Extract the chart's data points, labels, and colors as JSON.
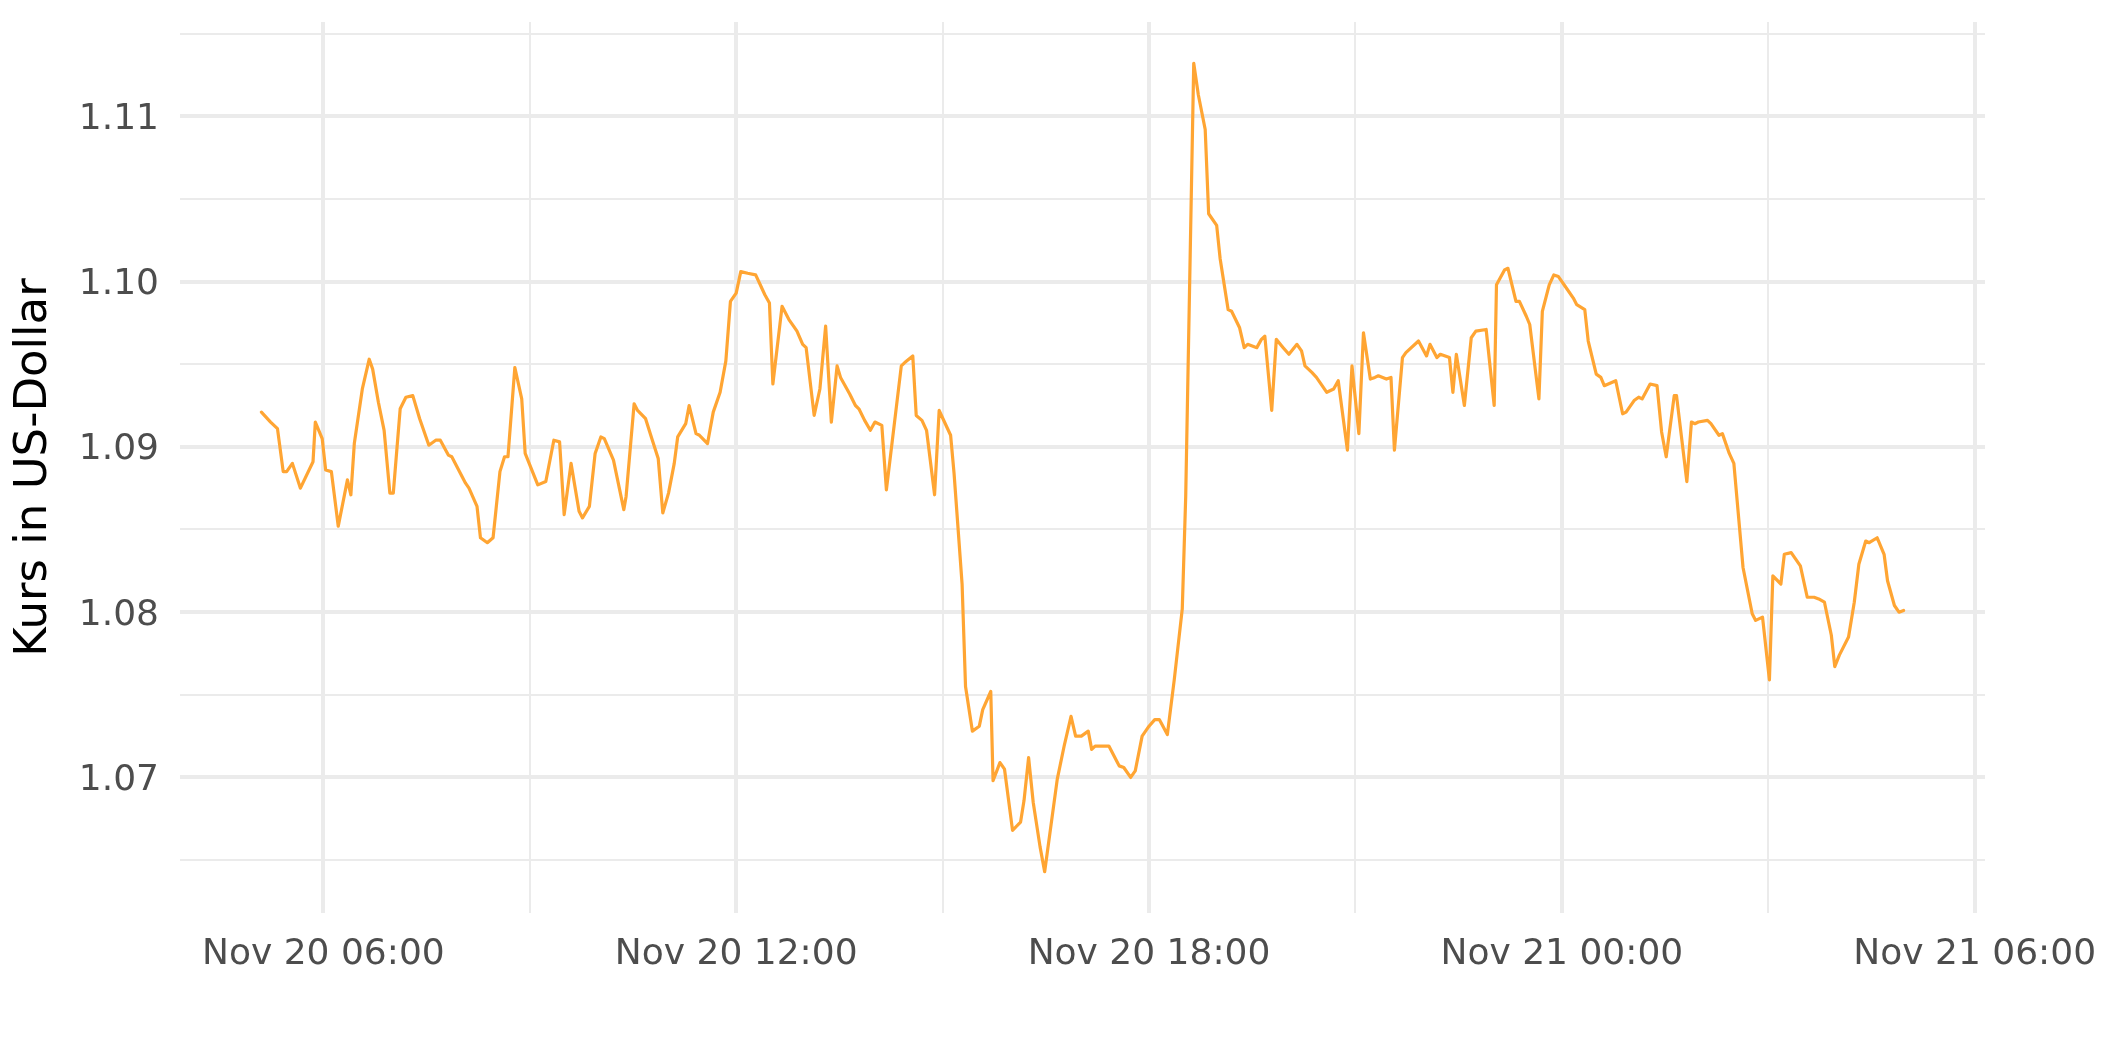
{
  "chart_data": {
    "type": "line",
    "ylabel": "Kurs in US-Dollar",
    "x": [
      "--11-20T05:06",
      "--11-20T05:14",
      "--11-20T05:20",
      "--11-20T05:25",
      "--11-20T05:28",
      "--11-20T05:33",
      "--11-20T05:40",
      "--11-20T05:51",
      "--11-20T05:53",
      "--11-20T05:59",
      "--11-20T06:02",
      "--11-20T06:07",
      "--11-20T06:13",
      "--11-20T06:21",
      "--11-20T06:24",
      "--11-20T06:27",
      "--11-20T06:34",
      "--11-20T06:40",
      "--11-20T06:43",
      "--11-20T06:48",
      "--11-20T06:53",
      "--11-20T06:58",
      "--11-20T07:01",
      "--11-20T07:07",
      "--11-20T07:12",
      "--11-20T07:18",
      "--11-20T07:24",
      "--11-20T07:32",
      "--11-20T07:38",
      "--11-20T07:42",
      "--11-20T07:49",
      "--11-20T07:52",
      "--11-20T08:04",
      "--11-20T08:07",
      "--11-20T08:14",
      "--11-20T08:17",
      "--11-20T08:23",
      "--11-20T08:28",
      "--11-20T08:34",
      "--11-20T08:38",
      "--11-20T08:41",
      "--11-20T08:47",
      "--11-20T08:53",
      "--11-20T08:56",
      "--11-20T09:07",
      "--11-20T09:14",
      "--11-20T09:21",
      "--11-20T09:26",
      "--11-20T09:30",
      "--11-20T09:36",
      "--11-20T09:43",
      "--11-20T09:46",
      "--11-20T09:52",
      "--11-20T09:57",
      "--11-20T10:02",
      "--11-20T10:05",
      "--11-20T10:13",
      "--11-20T10:16",
      "--11-20T10:22",
      "--11-20T10:24",
      "--11-20T10:31",
      "--11-20T10:34",
      "--11-20T10:41",
      "--11-20T10:46",
      "--11-20T10:52",
      "--11-20T10:56",
      "--11-20T11:01",
      "--11-20T11:06",
      "--11-20T11:09",
      "--11-20T11:16",
      "--11-20T11:19",
      "--11-20T11:25",
      "--11-20T11:28",
      "--11-20T11:35",
      "--11-20T11:40",
      "--11-20T11:46",
      "--11-20T11:51",
      "--11-20T11:55",
      "--11-20T12:00",
      "--11-20T12:04",
      "--11-20T12:10",
      "--11-20T12:17",
      "--11-20T12:25",
      "--11-20T12:29",
      "--11-20T12:32",
      "--11-20T12:40",
      "--11-20T12:46",
      "--11-20T12:50",
      "--11-20T12:53",
      "--11-20T12:58",
      "--11-20T13:01",
      "--11-20T13:08",
      "--11-20T13:13",
      "--11-20T13:18",
      "--11-20T13:23",
      "--11-20T13:28",
      "--11-20T13:31",
      "--11-20T13:39",
      "--11-20T13:44",
      "--11-20T13:47",
      "--11-20T13:52",
      "--11-20T13:57",
      "--11-20T14:01",
      "--11-20T14:07",
      "--11-20T14:11",
      "--11-20T14:24",
      "--11-20T14:27",
      "--11-20T14:34",
      "--11-20T14:37",
      "--11-20T14:42",
      "--11-20T14:46",
      "--11-20T14:53",
      "--11-20T14:57",
      "--11-20T15:07",
      "--11-20T15:10",
      "--11-20T15:17",
      "--11-20T15:20",
      "--11-20T15:26",
      "--11-20T15:32",
      "--11-20T15:35",
      "--11-20T15:42",
      "--11-20T15:44",
      "--11-20T15:50",
      "--11-20T15:54",
      "--11-20T16:01",
      "--11-20T16:08",
      "--11-20T16:11",
      "--11-20T16:15",
      "--11-20T16:19",
      "--11-20T16:25",
      "--11-20T16:29",
      "--11-20T16:40",
      "--11-20T16:46",
      "--11-20T16:52",
      "--11-20T16:56",
      "--11-20T17:01",
      "--11-20T17:07",
      "--11-20T17:10",
      "--11-20T17:13",
      "--11-20T17:25",
      "--11-20T17:34",
      "--11-20T17:38",
      "--11-20T17:44",
      "--11-20T17:48",
      "--11-20T17:54",
      "--11-20T18:00",
      "--11-20T18:05",
      "--11-20T18:09",
      "--11-20T18:16",
      "--11-20T18:22",
      "--11-20T18:29",
      "--11-20T18:32",
      "--11-20T18:39",
      "--11-20T18:43",
      "--11-20T18:49",
      "--11-20T18:52",
      "--11-20T18:59",
      "--11-20T19:02",
      "--11-20T19:09",
      "--11-20T19:12",
      "--11-20T19:19",
      "--11-20T19:23",
      "--11-20T19:26",
      "--11-20T19:34",
      "--11-20T19:38",
      "--11-20T19:41",
      "--11-20T19:47",
      "--11-20T19:51",
      "--11-20T19:57",
      "--11-20T20:02",
      "--11-20T20:09",
      "--11-20T20:13",
      "--11-20T20:16",
      "--11-20T20:22",
      "--11-20T20:26",
      "--11-20T20:35",
      "--11-20T20:41",
      "--11-20T20:45",
      "--11-20T20:53",
      "--11-20T20:57",
      "--11-20T21:03",
      "--11-20T21:07",
      "--11-20T21:13",
      "--11-20T21:17",
      "--11-20T21:20",
      "--11-20T21:27",
      "--11-20T21:31",
      "--11-20T21:34",
      "--11-20T21:41",
      "--11-20T21:44",
      "--11-20T21:55",
      "--11-20T22:02",
      "--11-20T22:05",
      "--11-20T22:11",
      "--11-20T22:14",
      "--11-20T22:22",
      "--11-20T22:25",
      "--11-20T22:28",
      "--11-20T22:35",
      "--11-20T22:41",
      "--11-20T22:45",
      "--11-20T22:54",
      "--11-20T23:01",
      "--11-20T23:03",
      "--11-20T23:10",
      "--11-20T23:13",
      "--11-20T23:20",
      "--11-20T23:23",
      "--11-20T23:29",
      "--11-20T23:32",
      "--11-20T23:40",
      "--11-20T23:43",
      "--11-20T23:49",
      "--11-20T23:53",
      "--11-20T23:57",
      "--11-21T00:03",
      "--11-21T00:10",
      "--11-21T00:13",
      "--11-21T00:20",
      "--11-21T00:23",
      "--11-21T00:30",
      "--11-21T00:34",
      "--11-21T00:37",
      "--11-21T00:47",
      "--11-21T00:53",
      "--11-21T00:56",
      "--11-21T01:03",
      "--11-21T01:07",
      "--11-21T01:10",
      "--11-21T01:17",
      "--11-21T01:23",
      "--11-21T01:27",
      "--11-21T01:31",
      "--11-21T01:38",
      "--11-21T01:40",
      "--11-21T01:49",
      "--11-21T01:53",
      "--11-21T01:56",
      "--11-21T01:59",
      "--11-21T02:07",
      "--11-21T02:10",
      "--11-21T02:17",
      "--11-21T02:20",
      "--11-21T02:26",
      "--11-21T02:30",
      "--11-21T02:38",
      "--11-21T02:46",
      "--11-21T02:49",
      "--11-21T02:55",
      "--11-21T03:01",
      "--11-21T03:04",
      "--11-21T03:11",
      "--11-21T03:14",
      "--11-21T03:20",
      "--11-21T03:23",
      "--11-21T03:28",
      "--11-21T03:34",
      "--11-21T03:40",
      "--11-21T03:44",
      "--11-21T03:49",
      "--11-21T03:55",
      "--11-21T03:58",
      "--11-21T04:02",
      "--11-21T04:10",
      "--11-21T04:15",
      "--11-21T04:19",
      "--11-21T04:25",
      "--11-21T04:28",
      "--11-21T04:35",
      "--11-21T04:41",
      "--11-21T04:44",
      "--11-21T04:50",
      "--11-21T04:54",
      "--11-21T04:58"
    ],
    "series": [
      {
        "color": "#ffa533",
        "values": [
          1.0921,
          1.0915,
          1.0911,
          1.0885,
          1.0885,
          1.089,
          1.0875,
          1.0891,
          1.0915,
          1.0905,
          1.0886,
          1.0885,
          1.0852,
          1.088,
          1.0871,
          1.0902,
          1.0935,
          1.0953,
          1.0947,
          1.0927,
          1.091,
          1.0872,
          1.0872,
          1.0923,
          1.093,
          1.0931,
          1.0917,
          1.0901,
          1.0904,
          1.0904,
          1.0895,
          1.0894,
          1.0878,
          1.0875,
          1.0864,
          1.0845,
          1.0842,
          1.0845,
          1.0885,
          1.0894,
          1.0894,
          1.0948,
          1.0929,
          1.0896,
          1.0877,
          1.0879,
          1.0904,
          1.0903,
          1.0859,
          1.089,
          1.0861,
          1.0857,
          1.0864,
          1.0896,
          1.0906,
          1.0905,
          1.0892,
          1.0882,
          1.0862,
          1.087,
          1.0926,
          1.0922,
          1.0917,
          1.0906,
          1.0893,
          1.086,
          1.0872,
          1.089,
          1.0906,
          1.0914,
          1.0925,
          1.0908,
          1.0907,
          1.0902,
          1.0921,
          1.0933,
          1.0952,
          1.0988,
          1.0993,
          1.1006,
          1.1005,
          1.1004,
          1.0992,
          1.0987,
          1.0938,
          1.0985,
          1.0977,
          1.0973,
          1.097,
          1.0962,
          1.096,
          1.0919,
          1.0935,
          1.0973,
          1.0915,
          1.0949,
          1.0942,
          1.0932,
          1.0925,
          1.0923,
          1.0916,
          1.091,
          1.0915,
          1.0913,
          1.0874,
          1.0949,
          1.0951,
          1.0955,
          1.0919,
          1.0916,
          1.091,
          1.0871,
          1.0922,
          1.0907,
          1.0884,
          1.0817,
          1.0755,
          1.0728,
          1.0731,
          1.0741,
          1.0752,
          1.0698,
          1.0709,
          1.0705,
          1.0668,
          1.0673,
          1.0686,
          1.0712,
          1.0685,
          1.0658,
          1.0643,
          1.0699,
          1.0719,
          1.0737,
          1.0725,
          1.0725,
          1.0728,
          1.0717,
          1.0719,
          1.0719,
          1.0707,
          1.0706,
          1.07,
          1.0704,
          1.0725,
          1.0731,
          1.0735,
          1.0735,
          1.0726,
          1.0759,
          1.0802,
          1.087,
          1.1132,
          1.1113,
          1.1092,
          1.1041,
          1.1034,
          1.1014,
          1.0983,
          1.0982,
          1.0972,
          1.096,
          1.0962,
          1.096,
          1.0965,
          1.0967,
          1.0922,
          1.0965,
          1.096,
          1.0956,
          1.0962,
          1.0958,
          1.0949,
          1.0945,
          1.0942,
          1.0933,
          1.0935,
          1.094,
          1.0898,
          1.0949,
          1.0908,
          1.0969,
          1.0941,
          1.0942,
          1.0943,
          1.0941,
          1.0942,
          1.0898,
          1.0954,
          1.0957,
          1.0964,
          1.0955,
          1.0962,
          1.0954,
          1.0956,
          1.0954,
          1.0933,
          1.0956,
          1.0925,
          1.0966,
          1.097,
          1.0971,
          1.0925,
          1.0998,
          1.1007,
          1.1008,
          1.0988,
          1.0988,
          1.0979,
          1.0974,
          1.0929,
          1.0982,
          1.0998,
          1.1004,
          1.1003,
          1.0997,
          1.099,
          1.0986,
          1.0983,
          1.0964,
          1.0944,
          1.0942,
          1.0937,
          1.094,
          1.092,
          1.0921,
          1.0928,
          1.093,
          1.0929,
          1.0938,
          1.0937,
          1.0909,
          1.0894,
          1.0931,
          1.0931,
          1.0879,
          1.0915,
          1.0914,
          1.0915,
          1.0916,
          1.0914,
          1.0907,
          1.0908,
          1.0896,
          1.089,
          1.0827,
          1.0799,
          1.0795,
          1.0797,
          1.0759,
          1.0822,
          1.0817,
          1.0835,
          1.0836,
          1.0833,
          1.0828,
          1.0809,
          1.0809,
          1.0808,
          1.0806,
          1.0786,
          1.0767,
          1.0774,
          1.0785,
          1.0806,
          1.0829,
          1.0843,
          1.0842,
          1.0845,
          1.0835,
          1.0819,
          1.0804,
          1.08,
          1.0801
        ]
      }
    ],
    "xlim": [
      "--11-20T03:55",
      "--11-21T06:09"
    ],
    "ylim": [
      1.0618,
      1.1157
    ],
    "xticks": [
      {
        "value": "--11-20T06:00",
        "label": "Nov 20 06:00"
      },
      {
        "value": "--11-20T09:00",
        "label": null
      },
      {
        "value": "--11-20T12:00",
        "label": "Nov 20 12:00"
      },
      {
        "value": "--11-20T15:00",
        "label": null
      },
      {
        "value": "--11-20T18:00",
        "label": "Nov 20 18:00"
      },
      {
        "value": "--11-20T21:00",
        "label": null
      },
      {
        "value": "--11-21T00:00",
        "label": "Nov 21 00:00"
      },
      {
        "value": "--11-21T03:00",
        "label": null
      },
      {
        "value": "--11-21T06:00",
        "label": "Nov 21 06:00"
      }
    ],
    "yticks": [
      {
        "value": 1.065,
        "label": null
      },
      1.07,
      {
        "value": 1.075,
        "label": null
      },
      1.08,
      {
        "value": 1.085,
        "label": null
      },
      1.09,
      {
        "value": 1.095,
        "label": null
      },
      {
        "value": 1.1,
        "label": "1.10"
      },
      {
        "value": 1.105,
        "label": null
      },
      1.11,
      {
        "value": 1.115,
        "label": null
      }
    ],
    "grid": true,
    "line_style": "solid"
  }
}
